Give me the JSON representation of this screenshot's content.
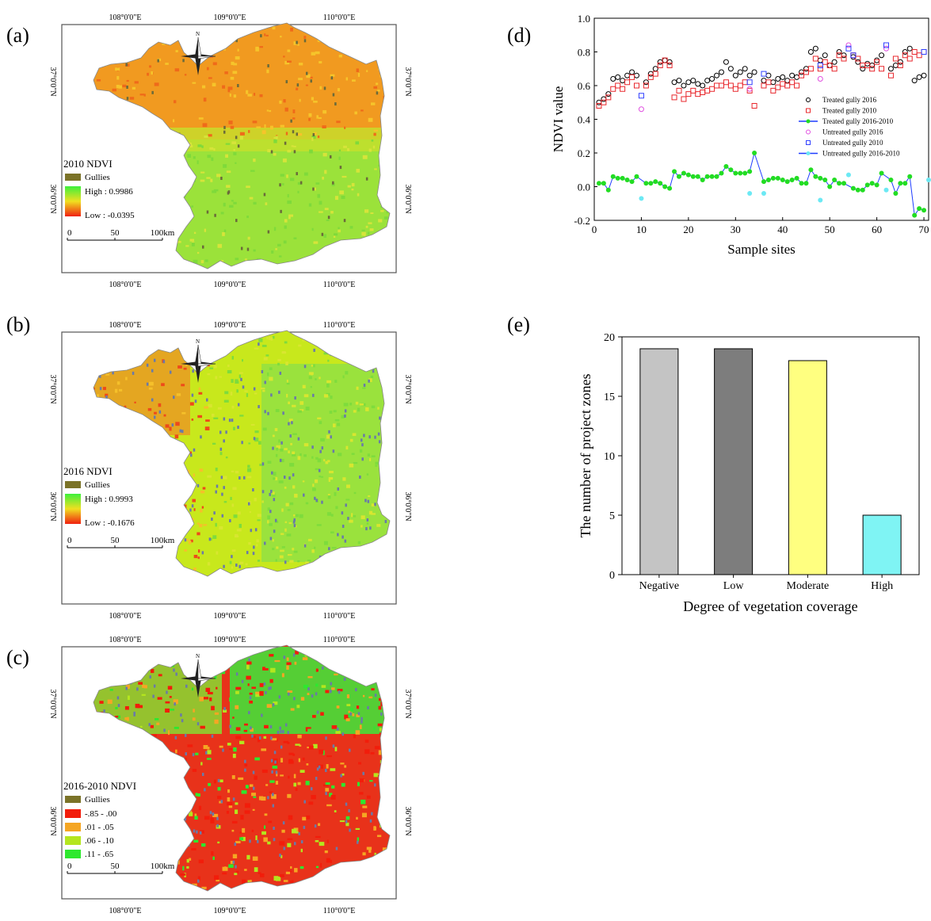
{
  "panels": {
    "a": "(a)",
    "b": "(b)",
    "c": "(c)",
    "d": "(d)",
    "e": "(e)"
  },
  "maps": [
    {
      "id": "a",
      "lon_labels": [
        "108°0'0\"E",
        "109°0'0\"E",
        "110°0'0\"E"
      ],
      "lat_labels": [
        "37°0'0\"N",
        "36°0'0\"N"
      ],
      "north": "N",
      "legend_title": "2010 NDVI",
      "gullies": "Gullies",
      "high": "High : 0.9986",
      "low": "Low : -0.0395",
      "scale_ticks": [
        "0",
        "50",
        "100"
      ],
      "scale_unit": "km",
      "style": "orange"
    },
    {
      "id": "b",
      "lon_labels": [
        "108°0'0\"E",
        "109°0'0\"E",
        "110°0'0\"E"
      ],
      "lat_labels": [
        "37°0'0\"N",
        "36°0'0\"N"
      ],
      "north": "N",
      "legend_title": "2016 NDVI",
      "gullies": "Gullies",
      "high": "High : 0.9993",
      "low": "Low : -0.1676",
      "scale_ticks": [
        "0",
        "50",
        "100"
      ],
      "scale_unit": "km",
      "style": "green"
    },
    {
      "id": "c",
      "lon_labels": [
        "108°0'0\"E",
        "109°0'0\"E",
        "110°0'0\"E"
      ],
      "lat_labels": [
        "37°0'0\"N",
        "36°0'0\"N"
      ],
      "north": "N",
      "legend_title": "2016-2010 NDVI",
      "gullies": "Gullies",
      "classes": [
        {
          "label": "-.85 - .00",
          "color": "#f21d0b"
        },
        {
          "label": ".01 - .05",
          "color": "#f5a623"
        },
        {
          "label": ".06 - .10",
          "color": "#b4e61e"
        },
        {
          "label": ".11 - .65",
          "color": "#2ee82e"
        }
      ],
      "scale_ticks": [
        "0",
        "50",
        "100"
      ],
      "scale_unit": "km",
      "style": "diff"
    }
  ],
  "chart_data": [
    {
      "type": "scatter",
      "ylabel": "NDVI value",
      "xlabel": "Sample sites",
      "xlim": [
        0,
        71
      ],
      "ylim": [
        -0.2,
        1.0
      ],
      "xticks": [
        "0",
        "10",
        "20",
        "30",
        "40",
        "50",
        "60",
        "70"
      ],
      "yticks": [
        "-0.2",
        "0.0",
        "0.2",
        "0.4",
        "0.6",
        "0.8",
        "1.0"
      ],
      "series": [
        {
          "name": "Treated gully 2016",
          "marker": "circle",
          "color": "#000000",
          "x": [
            1,
            2,
            3,
            4,
            5,
            6,
            7,
            8,
            9,
            11,
            12,
            13,
            14,
            15,
            16,
            17,
            18,
            19,
            20,
            21,
            22,
            23,
            24,
            25,
            26,
            27,
            28,
            29,
            30,
            31,
            32,
            33,
            34,
            36,
            37,
            38,
            39,
            40,
            41,
            42,
            43,
            44,
            45,
            46,
            47,
            48,
            49,
            50,
            51,
            52,
            53,
            55,
            56,
            57,
            58,
            59,
            60,
            61,
            63,
            64,
            65,
            66,
            67,
            68,
            69,
            70
          ],
          "y": [
            0.5,
            0.52,
            0.55,
            0.64,
            0.65,
            0.63,
            0.66,
            0.68,
            0.66,
            0.62,
            0.67,
            0.7,
            0.74,
            0.75,
            0.74,
            0.62,
            0.63,
            0.6,
            0.62,
            0.63,
            0.61,
            0.6,
            0.63,
            0.64,
            0.66,
            0.68,
            0.74,
            0.7,
            0.66,
            0.68,
            0.7,
            0.66,
            0.68,
            0.63,
            0.66,
            0.62,
            0.64,
            0.65,
            0.63,
            0.66,
            0.65,
            0.68,
            0.7,
            0.8,
            0.82,
            0.75,
            0.78,
            0.72,
            0.74,
            0.8,
            0.78,
            0.77,
            0.74,
            0.7,
            0.73,
            0.72,
            0.75,
            0.78,
            0.7,
            0.72,
            0.74,
            0.8,
            0.82,
            0.63,
            0.65,
            0.66
          ]
        },
        {
          "name": "Treated gully 2010",
          "marker": "square",
          "color": "#e8262b",
          "x": [
            1,
            2,
            3,
            4,
            5,
            6,
            7,
            8,
            9,
            11,
            12,
            13,
            14,
            15,
            16,
            17,
            18,
            19,
            20,
            21,
            22,
            23,
            24,
            25,
            26,
            27,
            28,
            29,
            30,
            31,
            32,
            33,
            34,
            36,
            37,
            38,
            39,
            40,
            41,
            42,
            43,
            44,
            45,
            46,
            47,
            48,
            49,
            50,
            51,
            52,
            53,
            55,
            56,
            57,
            58,
            59,
            60,
            61,
            63,
            64,
            65,
            66,
            67,
            68,
            69,
            70
          ],
          "y": [
            0.48,
            0.5,
            0.53,
            0.58,
            0.6,
            0.58,
            0.62,
            0.65,
            0.6,
            0.6,
            0.65,
            0.67,
            0.72,
            0.75,
            0.72,
            0.53,
            0.57,
            0.52,
            0.55,
            0.57,
            0.55,
            0.56,
            0.57,
            0.58,
            0.6,
            0.6,
            0.62,
            0.6,
            0.58,
            0.6,
            0.62,
            0.57,
            0.48,
            0.6,
            0.62,
            0.57,
            0.59,
            0.61,
            0.6,
            0.62,
            0.6,
            0.66,
            0.68,
            0.7,
            0.76,
            0.7,
            0.74,
            0.72,
            0.7,
            0.78,
            0.76,
            0.78,
            0.76,
            0.72,
            0.72,
            0.7,
            0.74,
            0.7,
            0.66,
            0.76,
            0.72,
            0.78,
            0.76,
            0.8,
            0.78,
            0.8
          ]
        },
        {
          "name": "Treated gully 2016-2010",
          "marker": "filled-circle-line",
          "color": "#22dd22",
          "line_color": "#1e3cff",
          "x": [
            1,
            2,
            3,
            4,
            5,
            6,
            7,
            8,
            9,
            11,
            12,
            13,
            14,
            15,
            16,
            17,
            18,
            19,
            20,
            21,
            22,
            23,
            24,
            25,
            26,
            27,
            28,
            29,
            30,
            31,
            32,
            33,
            34,
            36,
            37,
            38,
            39,
            40,
            41,
            42,
            43,
            44,
            45,
            46,
            47,
            48,
            49,
            50,
            51,
            52,
            53,
            55,
            56,
            57,
            58,
            59,
            60,
            61,
            63,
            64,
            65,
            66,
            67,
            68,
            69,
            70
          ],
          "y": [
            0.02,
            0.02,
            -0.02,
            0.06,
            0.05,
            0.05,
            0.04,
            0.03,
            0.06,
            0.02,
            0.02,
            0.03,
            0.02,
            0.0,
            -0.01,
            0.09,
            0.06,
            0.08,
            0.07,
            0.06,
            0.06,
            0.04,
            0.06,
            0.06,
            0.06,
            0.08,
            0.12,
            0.1,
            0.08,
            0.08,
            0.08,
            0.09,
            0.2,
            0.03,
            0.04,
            0.05,
            0.05,
            0.04,
            0.03,
            0.04,
            0.05,
            0.02,
            0.02,
            0.1,
            0.06,
            0.05,
            0.04,
            0.0,
            0.04,
            0.02,
            0.02,
            -0.01,
            -0.02,
            -0.02,
            0.01,
            0.02,
            0.01,
            0.08,
            0.04,
            -0.04,
            0.02,
            0.02,
            0.06,
            -0.17,
            -0.13,
            -0.14
          ]
        },
        {
          "name": "Untreated gully 2016",
          "marker": "circle",
          "color": "#e050e0",
          "x": [
            10,
            33,
            48,
            54,
            62
          ],
          "y": [
            0.46,
            0.58,
            0.64,
            0.84,
            0.82
          ]
        },
        {
          "name": "Untreated gully 2010",
          "marker": "square",
          "color": "#3040ff",
          "x": [
            10,
            33,
            36,
            48,
            54,
            55,
            62,
            70
          ],
          "y": [
            0.54,
            0.62,
            0.67,
            0.72,
            0.82,
            0.78,
            0.84,
            0.8
          ]
        },
        {
          "name": "Untreated gully 2016-2010",
          "marker": "filled-circle-line",
          "color": "#6ce9f4",
          "line_color": "#1e3cff",
          "x": [
            10,
            33,
            36,
            48,
            54,
            62,
            71
          ],
          "y": [
            -0.07,
            -0.04,
            -0.04,
            -0.08,
            0.07,
            -0.02,
            0.04
          ]
        }
      ]
    },
    {
      "type": "bar",
      "ylabel": "The number of project zones",
      "xlabel": "Degree of vegetation coverage",
      "categories": [
        "Negative",
        "Low",
        "Moderate",
        "High"
      ],
      "values": [
        19,
        19,
        18,
        5
      ],
      "colors": [
        "#c4c4c4",
        "#7d7d7d",
        "#ffff80",
        "#7ff4f4"
      ],
      "ylim": [
        0,
        20
      ],
      "yticks": [
        "0",
        "5",
        "10",
        "15",
        "20"
      ]
    }
  ]
}
